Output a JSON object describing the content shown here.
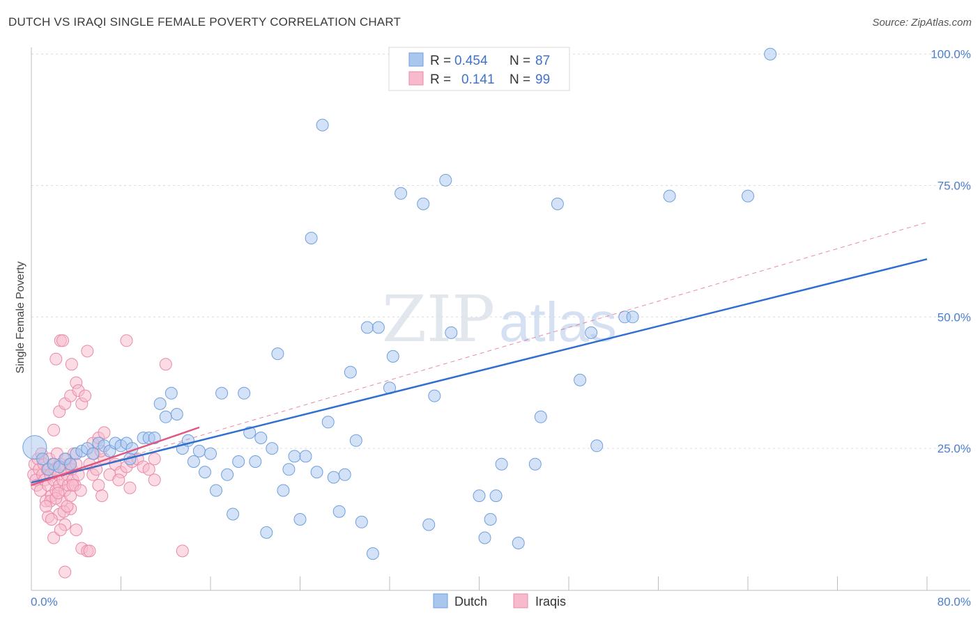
{
  "title": "DUTCH VS IRAQI SINGLE FEMALE POVERTY CORRELATION CHART",
  "source": "Source: ZipAtlas.com",
  "watermark": {
    "part1": "ZIP",
    "part2": "atlas"
  },
  "legend": {
    "r_label": "R =",
    "n_label": "N =",
    "rows": [
      {
        "series": "Dutch",
        "r": "0.454",
        "n": "87",
        "color": "#a9c6ef",
        "stroke": "#6f9fdc"
      },
      {
        "series": "Iraqis",
        "r": "0.141",
        "n": "99",
        "color": "#f7b9cc",
        "stroke": "#e98aa8"
      }
    ]
  },
  "bottom_legend": [
    "Dutch",
    "Iraqis"
  ],
  "chart_data": {
    "type": "scatter",
    "title": "DUTCH VS IRAQI SINGLE FEMALE POVERTY CORRELATION CHART",
    "xlabel": "",
    "ylabel": "Single Female Poverty",
    "xlim": [
      0,
      80
    ],
    "ylim": [
      -2,
      103
    ],
    "x_tick_labels": [
      "0.0%",
      "80.0%"
    ],
    "y_tick_labels": [
      "100.0%",
      "75.0%",
      "50.0%",
      "25.0%"
    ],
    "y_ticks": [
      100,
      75,
      50,
      25
    ],
    "grid": true,
    "legend_position": "top-center",
    "series": [
      {
        "name": "Dutch",
        "color": "#a9c6ef",
        "stroke": "#6f9fdc",
        "trend": {
          "x": [
            0,
            80
          ],
          "y": [
            18.5,
            61
          ],
          "color": "#2f6fd0",
          "style": "solid"
        },
        "points": [
          [
            0.3,
            25.2
          ],
          [
            1,
            23
          ],
          [
            1.5,
            21
          ],
          [
            2,
            22
          ],
          [
            2.5,
            21.5
          ],
          [
            3,
            23
          ],
          [
            3.5,
            22
          ],
          [
            4,
            24
          ],
          [
            4.5,
            24.5
          ],
          [
            5,
            25
          ],
          [
            5.5,
            24
          ],
          [
            6,
            26
          ],
          [
            6.5,
            25.5
          ],
          [
            7,
            24.5
          ],
          [
            7.5,
            26
          ],
          [
            8,
            25.5
          ],
          [
            8.5,
            26
          ],
          [
            8.8,
            23
          ],
          [
            9,
            25
          ],
          [
            10,
            27
          ],
          [
            10.5,
            27
          ],
          [
            11,
            27
          ],
          [
            11.5,
            33.5
          ],
          [
            12,
            31
          ],
          [
            12.5,
            35.5
          ],
          [
            13,
            31.5
          ],
          [
            13.5,
            25
          ],
          [
            14,
            26.5
          ],
          [
            14.5,
            22.5
          ],
          [
            15,
            24.5
          ],
          [
            15.5,
            20.5
          ],
          [
            16,
            24
          ],
          [
            16.5,
            17
          ],
          [
            17,
            35.5
          ],
          [
            17.5,
            20
          ],
          [
            18,
            12.5
          ],
          [
            18.5,
            22.5
          ],
          [
            19,
            35.5
          ],
          [
            19.5,
            28
          ],
          [
            20,
            22.5
          ],
          [
            20.5,
            27
          ],
          [
            21,
            9
          ],
          [
            21.5,
            25
          ],
          [
            22,
            43
          ],
          [
            22.5,
            17
          ],
          [
            23,
            21
          ],
          [
            23.5,
            23.5
          ],
          [
            24,
            11.5
          ],
          [
            24.5,
            23.5
          ],
          [
            25,
            65
          ],
          [
            25.5,
            20.5
          ],
          [
            26,
            86.5
          ],
          [
            26.5,
            30
          ],
          [
            27,
            19.5
          ],
          [
            27.5,
            13
          ],
          [
            28,
            20
          ],
          [
            28.5,
            39.5
          ],
          [
            29,
            26.5
          ],
          [
            29.5,
            11
          ],
          [
            30,
            48
          ],
          [
            30.5,
            5
          ],
          [
            31,
            48
          ],
          [
            32,
            36.5
          ],
          [
            32.3,
            42.5
          ],
          [
            33,
            73.5
          ],
          [
            35,
            71.5
          ],
          [
            35.5,
            10.5
          ],
          [
            36,
            35
          ],
          [
            37,
            76
          ],
          [
            37.5,
            47
          ],
          [
            40,
            16
          ],
          [
            40.5,
            8
          ],
          [
            41,
            11.5
          ],
          [
            41.5,
            16
          ],
          [
            42,
            22
          ],
          [
            43.5,
            7
          ],
          [
            45,
            22
          ],
          [
            45.5,
            31
          ],
          [
            47,
            71.5
          ],
          [
            49,
            38
          ],
          [
            50,
            47
          ],
          [
            50.5,
            25.5
          ],
          [
            53,
            50
          ],
          [
            53.7,
            50
          ],
          [
            57,
            73
          ],
          [
            64,
            73
          ],
          [
            66,
            100
          ]
        ]
      },
      {
        "name": "Iraqis",
        "color": "#f7b9cc",
        "stroke": "#e98aa8",
        "trend": {
          "x": [
            0,
            15
          ],
          "y": [
            18,
            29
          ],
          "color": "#e0577f",
          "style": "solid",
          "extended": {
            "x": [
              0,
              80
            ],
            "y": [
              18,
              68
            ],
            "style": "dashed"
          }
        },
        "points": [
          [
            0.2,
            20
          ],
          [
            0.3,
            22
          ],
          [
            0.4,
            19
          ],
          [
            0.5,
            18
          ],
          [
            0.6,
            23
          ],
          [
            0.7,
            21
          ],
          [
            0.8,
            17
          ],
          [
            0.9,
            24
          ],
          [
            1,
            20
          ],
          [
            1.1,
            22
          ],
          [
            1.2,
            19
          ],
          [
            1.3,
            15
          ],
          [
            1.4,
            21
          ],
          [
            1.5,
            18
          ],
          [
            1.6,
            23
          ],
          [
            1.7,
            20
          ],
          [
            1.8,
            16
          ],
          [
            1.9,
            22
          ],
          [
            2,
            19
          ],
          [
            2.1,
            21
          ],
          [
            2.2,
            17
          ],
          [
            2.3,
            24
          ],
          [
            2.4,
            20
          ],
          [
            2.5,
            18
          ],
          [
            2.6,
            22
          ],
          [
            2.7,
            15
          ],
          [
            2.8,
            19
          ],
          [
            2.9,
            21
          ],
          [
            3,
            17
          ],
          [
            3.1,
            23
          ],
          [
            3.2,
            20
          ],
          [
            3.3,
            18
          ],
          [
            3.4,
            22
          ],
          [
            3.5,
            16
          ],
          [
            3.6,
            21
          ],
          [
            3.7,
            19
          ],
          [
            3.8,
            24
          ],
          [
            3.9,
            18
          ],
          [
            4,
            22
          ],
          [
            4.2,
            20
          ],
          [
            1.5,
            12
          ],
          [
            2,
            8
          ],
          [
            2.5,
            12.5
          ],
          [
            3,
            10.5
          ],
          [
            3.5,
            13.5
          ],
          [
            4,
            9.5
          ],
          [
            4.5,
            6
          ],
          [
            5,
            5.5
          ],
          [
            5.2,
            5.5
          ],
          [
            3,
            1.5
          ],
          [
            1.7,
            15
          ],
          [
            2.2,
            15.5
          ],
          [
            2.4,
            16.5
          ],
          [
            1.3,
            14
          ],
          [
            2,
            28.5
          ],
          [
            2.5,
            32
          ],
          [
            3,
            33.5
          ],
          [
            3.5,
            35
          ],
          [
            4,
            37.5
          ],
          [
            4.5,
            33.5
          ],
          [
            2.2,
            42
          ],
          [
            2.6,
            45.5
          ],
          [
            2.8,
            45.5
          ],
          [
            3.6,
            41
          ],
          [
            4.2,
            36
          ],
          [
            5,
            43.5
          ],
          [
            5.5,
            26
          ],
          [
            6,
            27
          ],
          [
            6.5,
            28
          ],
          [
            5.2,
            22
          ],
          [
            5.5,
            20
          ],
          [
            6,
            18
          ],
          [
            6.3,
            16
          ],
          [
            6.5,
            23
          ],
          [
            5.8,
            21
          ],
          [
            7,
            20
          ],
          [
            7.5,
            22
          ],
          [
            8,
            20.5
          ],
          [
            7.8,
            19
          ],
          [
            8.5,
            21.5
          ],
          [
            9,
            22.5
          ],
          [
            8.8,
            17.5
          ],
          [
            9.5,
            23
          ],
          [
            10,
            21.5
          ],
          [
            11,
            23
          ],
          [
            8.5,
            45.5
          ],
          [
            12,
            41
          ],
          [
            11,
            19
          ],
          [
            10.5,
            21
          ],
          [
            4.8,
            35
          ],
          [
            5.6,
            24
          ],
          [
            6.2,
            24.5
          ],
          [
            3.7,
            18
          ],
          [
            4.4,
            17
          ],
          [
            2.9,
            13
          ],
          [
            1.8,
            11.5
          ],
          [
            2.6,
            9.5
          ],
          [
            3.2,
            14
          ],
          [
            13.5,
            5.5
          ]
        ]
      }
    ]
  }
}
